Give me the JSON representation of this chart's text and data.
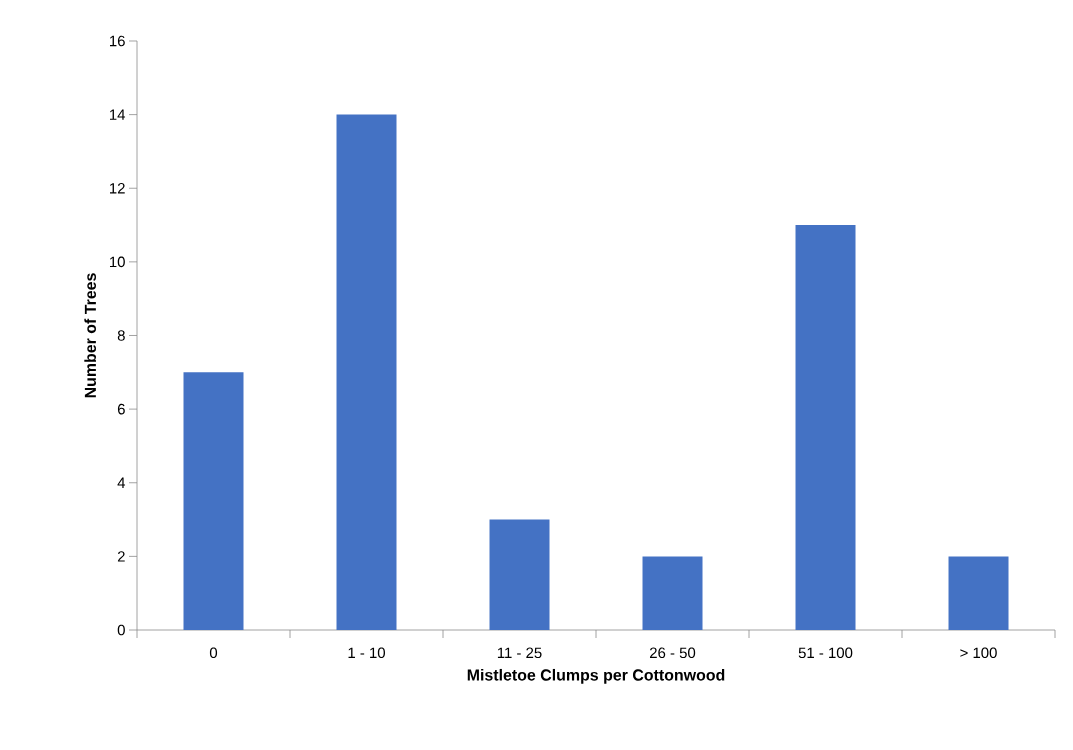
{
  "chart_data": {
    "type": "bar",
    "xlabel": "Mistletoe Clumps per Cottonwood",
    "ylabel": "Number of Trees",
    "categories": [
      "0",
      "1 - 10",
      "11 - 25",
      "26 - 50",
      "51 - 100",
      "> 100"
    ],
    "values": [
      7,
      14,
      3,
      2,
      11,
      2
    ],
    "color": "#4472c4",
    "ylim": [
      0,
      16
    ],
    "yticks": [
      0,
      2,
      4,
      6,
      8,
      10,
      12,
      14,
      16
    ],
    "grid": false
  }
}
